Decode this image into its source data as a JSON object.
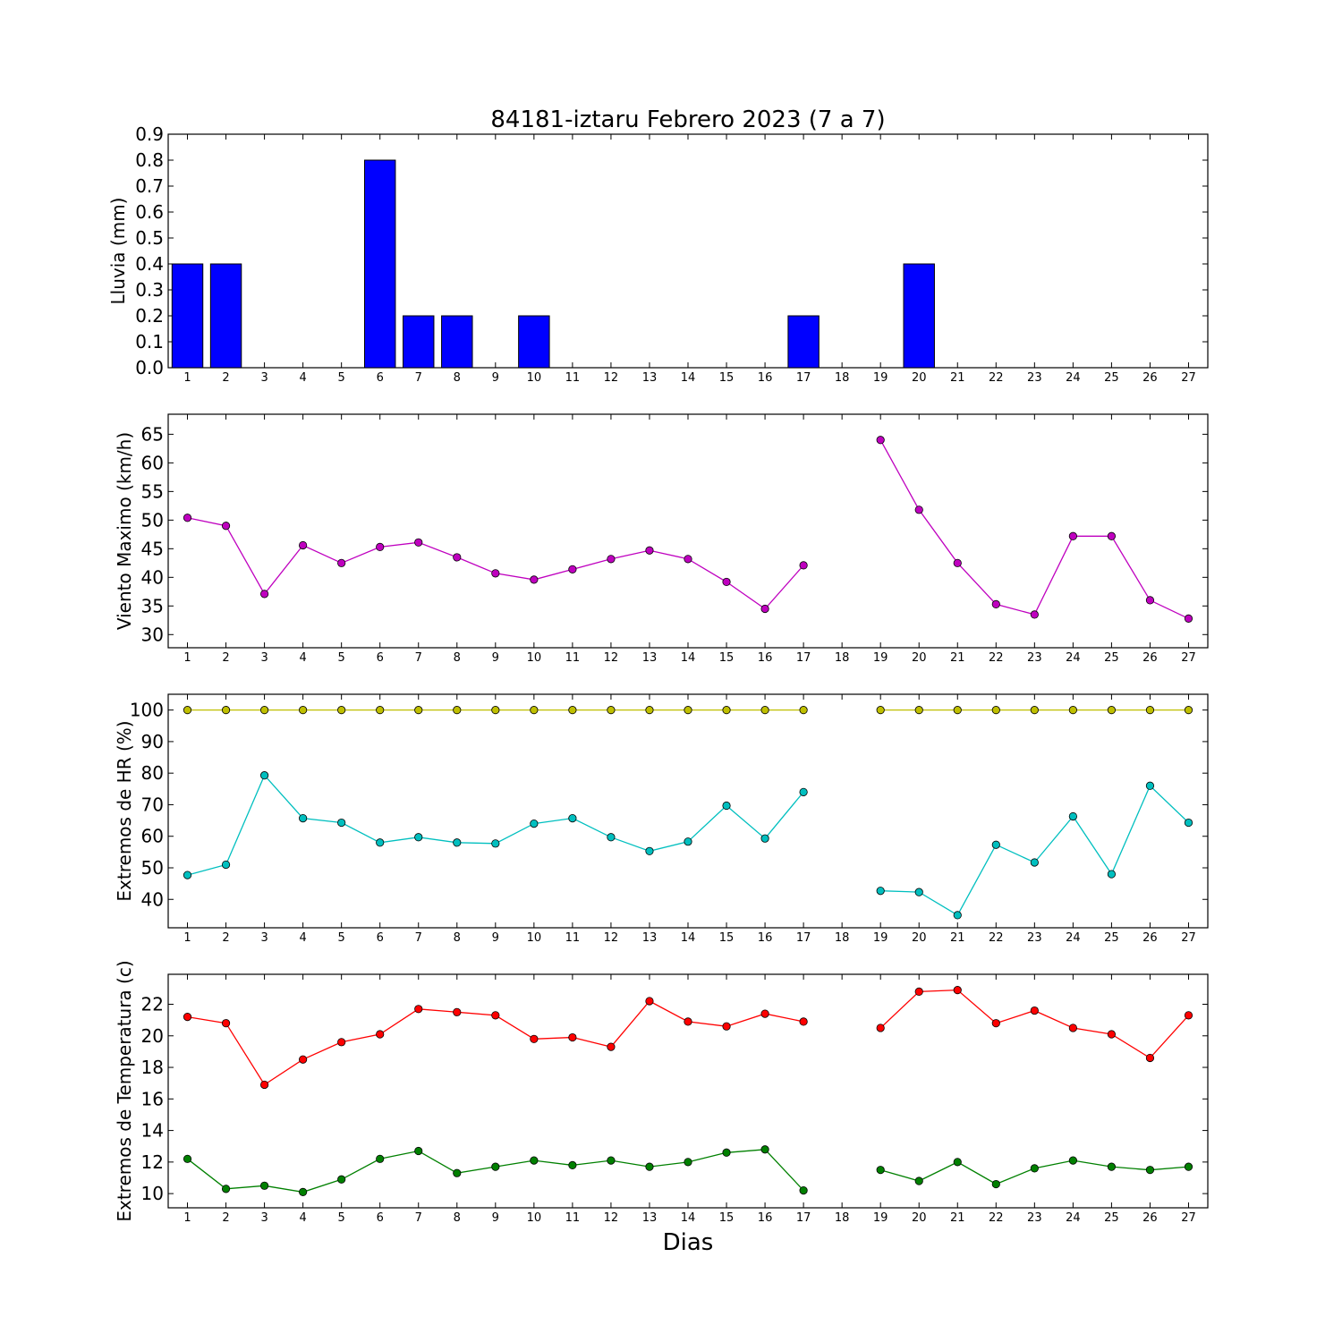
{
  "title": "84181-iztaru Febrero 2023  (7 a 7)",
  "xlabel": "Dias",
  "chart_data": [
    {
      "type": "bar",
      "ylabel": "Lluvia (mm)",
      "x": [
        1,
        2,
        3,
        4,
        5,
        6,
        7,
        8,
        9,
        10,
        11,
        12,
        13,
        14,
        15,
        16,
        17,
        18,
        19,
        20,
        21,
        22,
        23,
        24,
        25,
        26,
        27
      ],
      "values": [
        0.4,
        0.4,
        0,
        0,
        0,
        0.8,
        0.2,
        0.2,
        0,
        0.2,
        0,
        0,
        0,
        0,
        0,
        0,
        0.2,
        0,
        0,
        0.4,
        0,
        0,
        0,
        0,
        0,
        0,
        0
      ],
      "ylim": [
        0,
        0.9
      ],
      "yticks": [
        "0.0",
        "0.1",
        "0.2",
        "0.3",
        "0.4",
        "0.5",
        "0.6",
        "0.7",
        "0.8",
        "0.9"
      ],
      "color": "#0000ff"
    },
    {
      "type": "line",
      "ylabel": "Viento Maximo (km/h)",
      "x": [
        1,
        2,
        3,
        4,
        5,
        6,
        7,
        8,
        9,
        10,
        11,
        12,
        13,
        14,
        15,
        16,
        17,
        18,
        19,
        20,
        21,
        22,
        23,
        24,
        25,
        26,
        27
      ],
      "series": [
        {
          "color": "#bf00bf",
          "values": [
            50.4,
            49,
            37.1,
            45.6,
            42.5,
            45.3,
            46.1,
            43.5,
            40.7,
            39.6,
            41.4,
            43.2,
            44.7,
            43.2,
            39.2,
            34.5,
            42.1,
            null,
            64,
            51.8,
            42.5,
            35.3,
            33.5,
            47.2,
            47.2,
            36,
            32.8
          ]
        }
      ],
      "ylim": [
        27.7,
        68.5
      ],
      "yticks": [
        "30",
        "35",
        "40",
        "45",
        "50",
        "55",
        "60",
        "65"
      ]
    },
    {
      "type": "line",
      "ylabel": "Extremos de HR (%)",
      "x": [
        1,
        2,
        3,
        4,
        5,
        6,
        7,
        8,
        9,
        10,
        11,
        12,
        13,
        14,
        15,
        16,
        17,
        18,
        19,
        20,
        21,
        22,
        23,
        24,
        25,
        26,
        27
      ],
      "series": [
        {
          "color": "#bfbf00",
          "values": [
            100,
            100,
            100,
            100,
            100,
            100,
            100,
            100,
            100,
            100,
            100,
            100,
            100,
            100,
            100,
            100,
            100,
            null,
            100,
            100,
            100,
            100,
            100,
            100,
            100,
            100,
            100
          ]
        },
        {
          "color": "#00bfbf",
          "values": [
            47.7,
            51,
            79.3,
            65.7,
            64.3,
            58,
            59.7,
            58,
            57.7,
            64,
            65.7,
            59.7,
            55.3,
            58.3,
            69.7,
            59.3,
            74,
            null,
            42.7,
            42.3,
            35,
            57.3,
            51.7,
            66.3,
            48,
            76,
            64.3
          ]
        }
      ],
      "ylim": [
        31,
        105
      ],
      "yticks": [
        "40",
        "50",
        "60",
        "70",
        "80",
        "90",
        "100"
      ]
    },
    {
      "type": "line",
      "ylabel": "Extremos de Temperatura (c)",
      "x": [
        1,
        2,
        3,
        4,
        5,
        6,
        7,
        8,
        9,
        10,
        11,
        12,
        13,
        14,
        15,
        16,
        17,
        18,
        19,
        20,
        21,
        22,
        23,
        24,
        25,
        26,
        27
      ],
      "series": [
        {
          "color": "#ff0000",
          "values": [
            21.2,
            20.8,
            16.9,
            18.5,
            19.6,
            20.1,
            21.7,
            21.5,
            21.3,
            19.8,
            19.9,
            19.3,
            22.2,
            20.9,
            20.6,
            21.4,
            20.9,
            null,
            20.5,
            22.8,
            22.9,
            20.8,
            21.6,
            20.5,
            20.1,
            18.6,
            21.3
          ]
        },
        {
          "color": "#008000",
          "values": [
            12.2,
            10.3,
            10.5,
            10.1,
            10.9,
            12.2,
            12.7,
            11.3,
            11.7,
            12.1,
            11.8,
            12.1,
            11.7,
            12,
            12.6,
            12.8,
            10.2,
            null,
            11.5,
            10.8,
            12,
            10.6,
            11.6,
            12.1,
            11.7,
            11.5,
            11.7
          ]
        }
      ],
      "ylim": [
        9.1,
        23.9
      ],
      "yticks": [
        "10",
        "12",
        "14",
        "16",
        "18",
        "20",
        "22"
      ]
    }
  ]
}
